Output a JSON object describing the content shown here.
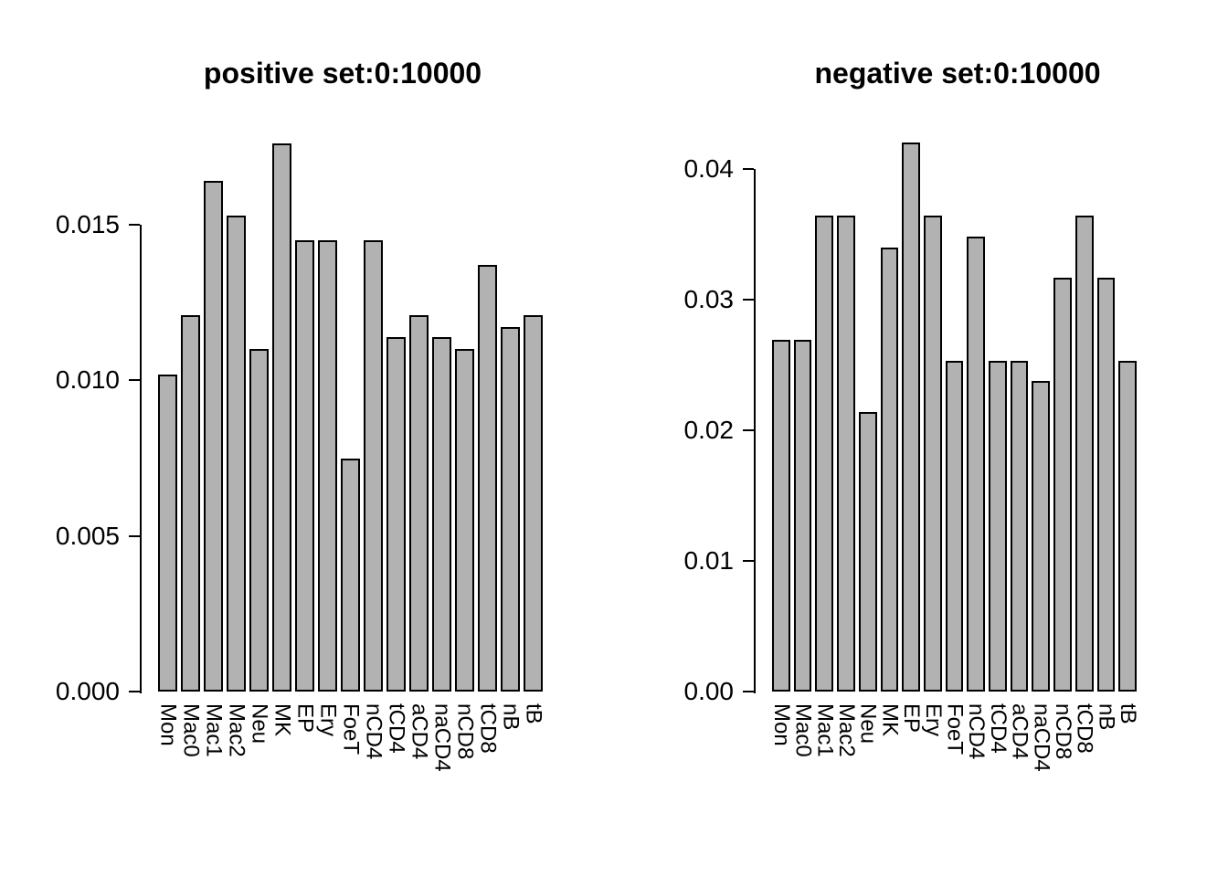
{
  "figure": {
    "background": "#ffffff",
    "text_color": "#000000"
  },
  "chart_data": [
    {
      "type": "bar",
      "title": "positive set:0:10000",
      "categories": [
        "Mon",
        "Mac0",
        "Mac1",
        "Mac2",
        "Neu",
        "MK",
        "EP",
        "Ery",
        "FoeT",
        "nCD4",
        "tCD4",
        "aCD4",
        "naCD4",
        "nCD8",
        "tCD8",
        "nB",
        "tB"
      ],
      "values": [
        0.0102,
        0.0121,
        0.0164,
        0.0153,
        0.011,
        0.0176,
        0.0145,
        0.0145,
        0.0075,
        0.0145,
        0.0114,
        0.0121,
        0.0114,
        0.011,
        0.0137,
        0.0117,
        0.0121
      ],
      "xlabel": "",
      "ylabel": "",
      "ylim": [
        0,
        0.0176
      ],
      "yticks": [
        0,
        0.005,
        0.01,
        0.015
      ],
      "ytick_labels": [
        "0.000",
        "0.005",
        "0.010",
        "0.015"
      ],
      "grid": false,
      "legend": null,
      "bar_color": "#b2b2b2",
      "bar_border": "#000000",
      "xtick_rotation": 90
    },
    {
      "type": "bar",
      "title": "negative set:0:10000",
      "categories": [
        "Mon",
        "Mac0",
        "Mac1",
        "Mac2",
        "Neu",
        "MK",
        "EP",
        "Ery",
        "FoeT",
        "nCD4",
        "tCD4",
        "aCD4",
        "naCD4",
        "nCD8",
        "tCD8",
        "nB",
        "tB"
      ],
      "values": [
        0.0269,
        0.0269,
        0.0364,
        0.0364,
        0.0214,
        0.034,
        0.042,
        0.0364,
        0.0253,
        0.0348,
        0.0253,
        0.0253,
        0.0238,
        0.0317,
        0.0364,
        0.0317,
        0.0253
      ],
      "xlabel": "",
      "ylabel": "",
      "ylim": [
        0,
        0.042
      ],
      "yticks": [
        0,
        0.01,
        0.02,
        0.03,
        0.04
      ],
      "ytick_labels": [
        "0.00",
        "0.01",
        "0.02",
        "0.03",
        "0.04"
      ],
      "grid": false,
      "legend": null,
      "bar_color": "#b2b2b2",
      "bar_border": "#000000",
      "xtick_rotation": 90
    }
  ]
}
